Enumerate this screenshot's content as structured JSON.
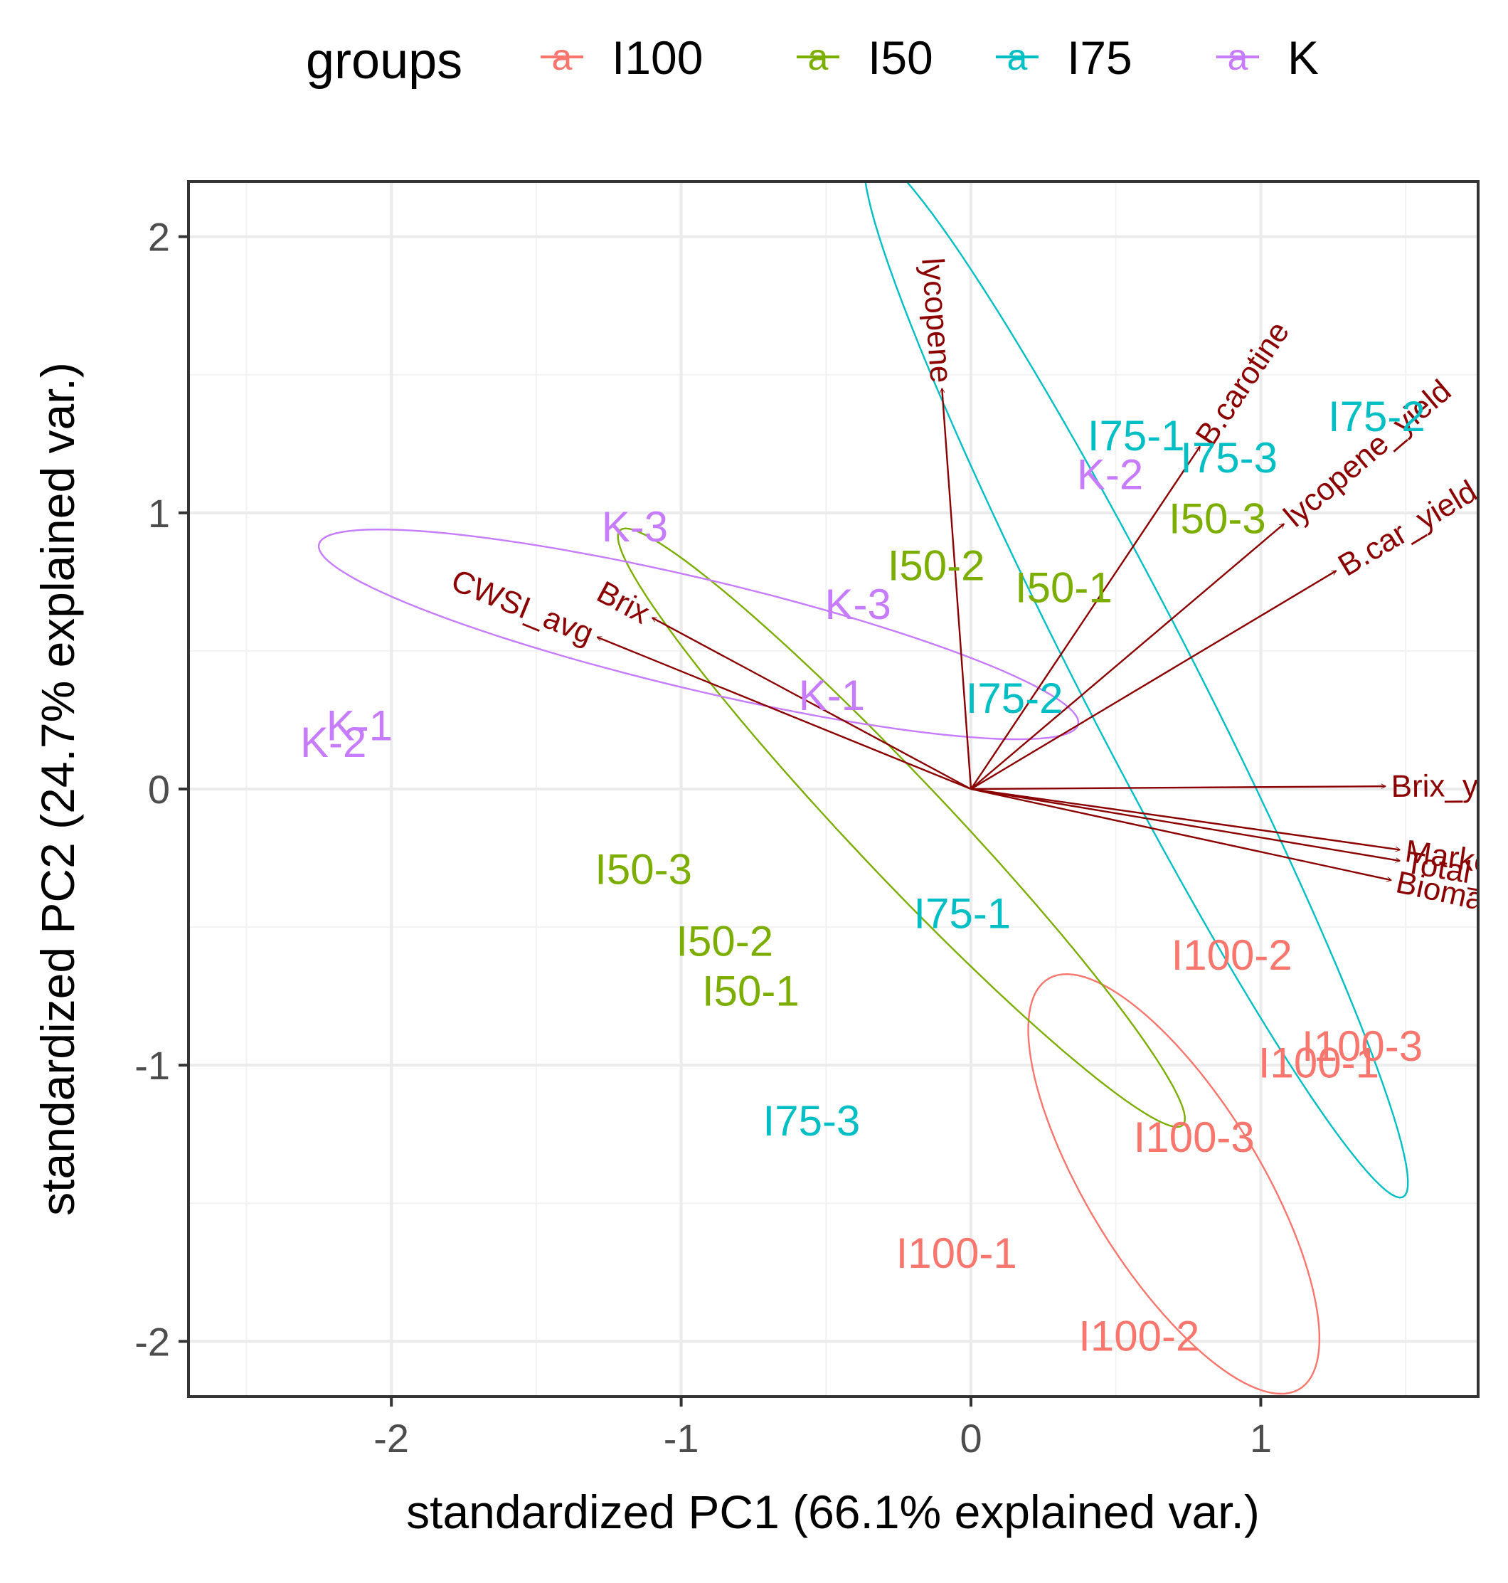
{
  "chart_data": {
    "type": "scatter",
    "subtype": "PCA biplot",
    "xlabel": "standardized PC1 (66.1% explained var.)",
    "ylabel": "standardized PC2 (24.7% explained var.)",
    "xlim": [
      -2.7,
      1.75
    ],
    "ylim": [
      -2.2,
      2.2
    ],
    "x_ticks": [
      -2,
      -1,
      0,
      1
    ],
    "x_tick_labels": [
      "-2",
      "-1",
      "0",
      "1"
    ],
    "y_ticks": [
      -2,
      -1,
      0,
      1,
      2
    ],
    "y_tick_labels": [
      "-2",
      "-1",
      "0",
      "1",
      "2"
    ],
    "grid": true,
    "legend": {
      "title": "groups",
      "position": "top",
      "key_glyph": "a",
      "entries": [
        {
          "label": "I100",
          "color": "#F8766D"
        },
        {
          "label": "I50",
          "color": "#7CAE00"
        },
        {
          "label": "I75",
          "color": "#00BFC4"
        },
        {
          "label": "K",
          "color": "#C77CFF"
        }
      ]
    },
    "arrow_color": "#8B0000",
    "points": [
      {
        "label": "I100-2",
        "group": "I100",
        "x": 0.9,
        "y": -0.6
      },
      {
        "label": "I100-3",
        "group": "I100",
        "x": 1.35,
        "y": -0.93
      },
      {
        "label": "I100-1",
        "group": "I100",
        "x": 1.2,
        "y": -0.99
      },
      {
        "label": "I100-3",
        "group": "I100",
        "x": 0.77,
        "y": -1.26
      },
      {
        "label": "I100-1",
        "group": "I100",
        "x": -0.05,
        "y": -1.68
      },
      {
        "label": "I100-2",
        "group": "I100",
        "x": 0.58,
        "y": -1.98
      },
      {
        "label": "I50-2",
        "group": "I50",
        "x": -0.12,
        "y": 0.81
      },
      {
        "label": "I50-1",
        "group": "I50",
        "x": 0.32,
        "y": 0.73
      },
      {
        "label": "I50-3",
        "group": "I50",
        "x": 0.85,
        "y": 0.98
      },
      {
        "label": "I50-3",
        "group": "I50",
        "x": -1.13,
        "y": -0.29
      },
      {
        "label": "I50-2",
        "group": "I50",
        "x": -0.85,
        "y": -0.55
      },
      {
        "label": "I50-1",
        "group": "I50",
        "x": -0.76,
        "y": -0.73
      },
      {
        "label": "I75-1",
        "group": "I75",
        "x": 0.57,
        "y": 1.28
      },
      {
        "label": "I75-3",
        "group": "I75",
        "x": 0.89,
        "y": 1.2
      },
      {
        "label": "I75-2",
        "group": "I75",
        "x": 1.4,
        "y": 1.35
      },
      {
        "label": "I75-2",
        "group": "I75",
        "x": 0.15,
        "y": 0.33
      },
      {
        "label": "I75-1",
        "group": "I75",
        "x": -0.03,
        "y": -0.45
      },
      {
        "label": "I75-3",
        "group": "I75",
        "x": -0.55,
        "y": -1.2
      },
      {
        "label": "K-2",
        "group": "K",
        "x": 0.48,
        "y": 1.14
      },
      {
        "label": "K-3",
        "group": "K",
        "x": -1.16,
        "y": 0.95
      },
      {
        "label": "K-3",
        "group": "K",
        "x": -0.39,
        "y": 0.67
      },
      {
        "label": "K-1",
        "group": "K",
        "x": -0.48,
        "y": 0.34
      },
      {
        "label": "K-1",
        "group": "K",
        "x": -2.11,
        "y": 0.23
      },
      {
        "label": "K-2",
        "group": "K",
        "x": -2.2,
        "y": 0.17
      }
    ],
    "ellipses": [
      {
        "group": "I100",
        "cx": 0.7,
        "cy": -1.43,
        "rx": 0.86,
        "ry": 0.3,
        "angle_deg": -60
      },
      {
        "group": "I50",
        "cx": -0.24,
        "cy": -0.14,
        "rx": 1.45,
        "ry": 0.17,
        "angle_deg": -48
      },
      {
        "group": "I75",
        "cx": 0.57,
        "cy": 0.41,
        "rx": 2.1,
        "ry": 0.2,
        "angle_deg": -64
      },
      {
        "group": "K",
        "cx": -0.94,
        "cy": 0.56,
        "rx": 1.35,
        "ry": 0.2,
        "angle_deg": -14
      }
    ],
    "loadings": [
      {
        "label": "lycopene",
        "x": -0.1,
        "y": 1.45
      },
      {
        "label": "B.carotine",
        "x": 0.79,
        "y": 1.24
      },
      {
        "label": "lycopene_yield",
        "x": 1.08,
        "y": 0.96
      },
      {
        "label": "B.car_yield",
        "x": 1.26,
        "y": 0.79
      },
      {
        "label": "Brix",
        "x": -1.1,
        "y": 0.62
      },
      {
        "label": "CWSI_avg",
        "x": -1.29,
        "y": 0.55
      },
      {
        "label": "Brix_yield",
        "x": 1.43,
        "y": 0.01
      },
      {
        "label": "Marketable_yield",
        "x": 1.48,
        "y": -0.22
      },
      {
        "label": "Total_yield",
        "x": 1.48,
        "y": -0.26
      },
      {
        "label": "Biomass",
        "x": 1.45,
        "y": -0.33
      }
    ]
  }
}
